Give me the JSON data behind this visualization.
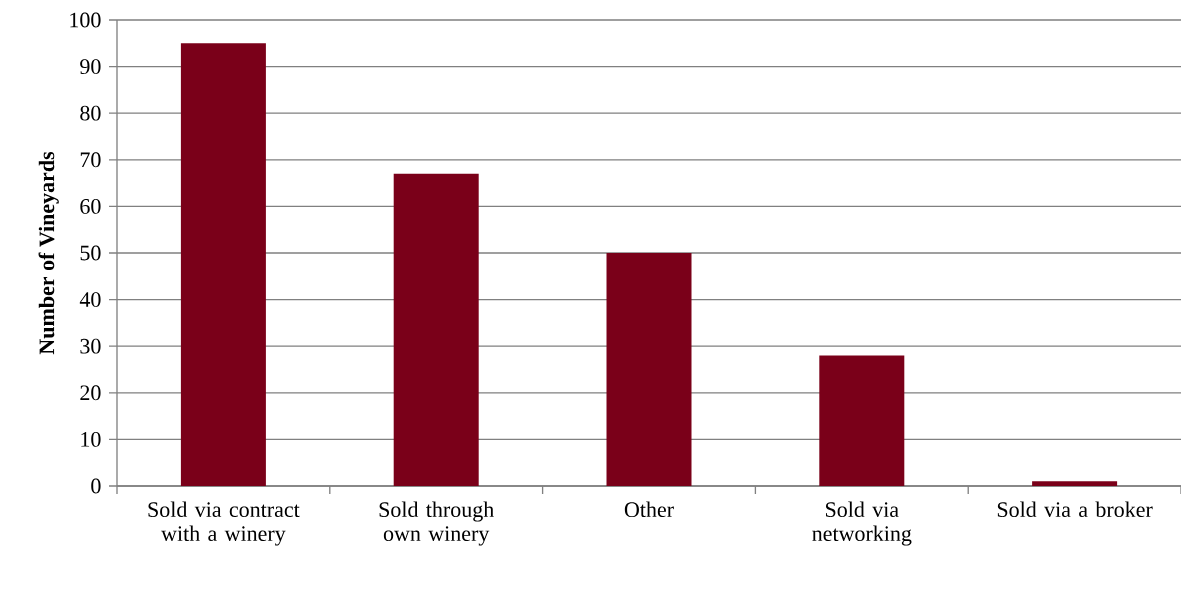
{
  "chart_data": {
    "type": "bar",
    "ylabel": "Number of Vineyards",
    "categories": [
      "Sold via contract with a winery",
      "Sold through own winery",
      "Other",
      "Sold via networking",
      "Sold via a broker"
    ],
    "values": [
      95,
      67,
      50,
      28,
      1
    ],
    "color": "#7a0019",
    "ylim": [
      0,
      100
    ],
    "yticks": [
      0,
      10,
      20,
      30,
      40,
      50,
      60,
      70,
      80,
      90,
      100
    ],
    "grid": "y"
  }
}
